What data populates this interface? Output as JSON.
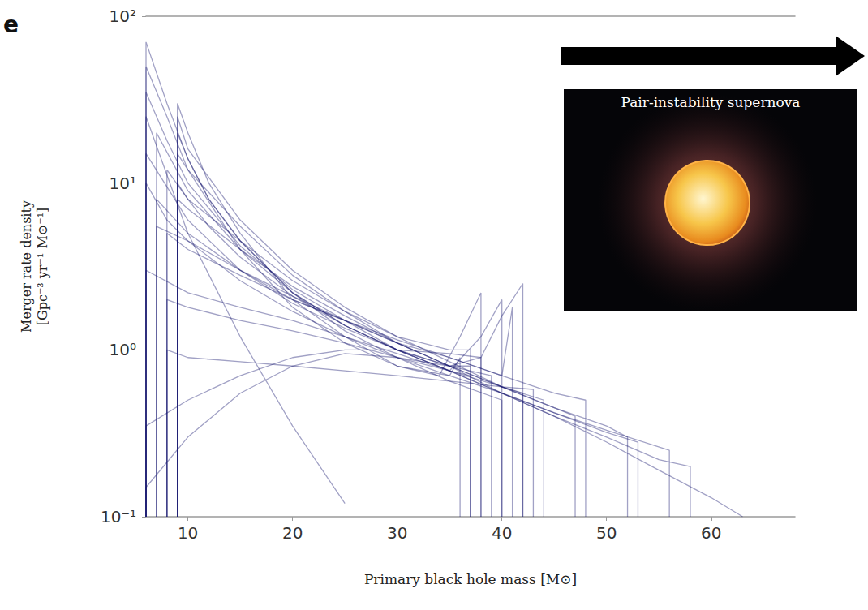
{
  "chart_data": {
    "type": "line",
    "panel_label": "e",
    "x_label": "Primary black hole mass [M⊙]",
    "y_label": "Merger rate density\n[Gpc⁻³ yr⁻¹ M⊙⁻¹]",
    "inset_title": "Pair-instability supernova",
    "log": "y",
    "grid": false,
    "color": "#14146e",
    "xlim": [
      6,
      68
    ],
    "xticks": [
      10,
      20,
      30,
      40,
      50,
      60
    ],
    "ylim": [
      0.1,
      100
    ],
    "yticks": [
      {
        "value": 0.1,
        "label": "10⁻¹"
      },
      {
        "value": 1,
        "label": "10⁰"
      },
      {
        "value": 10,
        "label": "10¹"
      },
      {
        "value": 100,
        "label": "10²"
      }
    ],
    "series": [
      {
        "x": [
          6,
          6,
          8,
          10,
          12,
          15,
          20,
          25,
          30,
          35,
          40,
          40
        ],
        "values": [
          0.1,
          70,
          30,
          14,
          8,
          4.5,
          2.2,
          1.3,
          0.9,
          0.65,
          0.5,
          0.1
        ]
      },
      {
        "x": [
          9,
          9,
          10,
          12,
          15,
          20,
          25,
          30,
          35,
          37,
          37
        ],
        "values": [
          0.1,
          20,
          14,
          8,
          4.5,
          2.2,
          1.4,
          1.0,
          0.75,
          0.7,
          0.1
        ]
      },
      {
        "x": [
          8,
          8,
          10,
          12,
          15,
          20,
          25,
          30,
          35,
          40,
          42,
          42
        ],
        "values": [
          0.1,
          12,
          8,
          5.5,
          3.6,
          2.1,
          1.4,
          1.0,
          0.8,
          0.6,
          0.55,
          0.1
        ]
      },
      {
        "x": [
          7,
          7,
          10,
          15,
          20,
          25,
          30,
          35,
          40,
          45,
          48,
          48
        ],
        "values": [
          0.1,
          8,
          5,
          3,
          2,
          1.5,
          1.1,
          0.9,
          0.7,
          0.55,
          0.5,
          0.1
        ]
      },
      {
        "x": [
          9,
          9,
          10,
          12,
          15,
          20,
          25,
          30,
          34,
          36,
          38,
          38
        ],
        "values": [
          0.1,
          30,
          20,
          10,
          5,
          2,
          1.2,
          0.8,
          0.7,
          1.2,
          2.2,
          0.1
        ]
      },
      {
        "x": [
          6,
          6,
          8,
          10,
          15,
          20,
          25,
          30,
          35,
          40,
          45,
          50,
          53,
          53
        ],
        "values": [
          0.1,
          10,
          6,
          4.5,
          2.6,
          1.7,
          1.2,
          0.9,
          0.7,
          0.55,
          0.42,
          0.32,
          0.28,
          0.1
        ]
      },
      {
        "x": [
          6,
          6,
          10,
          15,
          20,
          25,
          30,
          35,
          38,
          38
        ],
        "values": [
          0.1,
          0.35,
          0.5,
          0.7,
          0.9,
          1.0,
          1.0,
          0.95,
          0.9,
          0.1
        ]
      },
      {
        "x": [
          8,
          8,
          10,
          15,
          20,
          25,
          30,
          35,
          40,
          45,
          50,
          55,
          58,
          58
        ],
        "values": [
          0.1,
          5,
          4,
          2.8,
          2,
          1.5,
          1.1,
          0.8,
          0.55,
          0.4,
          0.3,
          0.22,
          0.2,
          0.1
        ]
      },
      {
        "x": [
          6,
          6,
          8,
          10,
          15,
          20,
          25,
          30,
          35,
          36,
          36
        ],
        "values": [
          0.1,
          50,
          25,
          12,
          4,
          1.8,
          1.1,
          0.8,
          0.7,
          0.9,
          0.1
        ]
      },
      {
        "x": [
          9,
          9,
          10,
          15,
          20,
          25,
          30,
          35,
          38,
          40,
          42,
          42
        ],
        "values": [
          0.1,
          15,
          12,
          5.5,
          2.8,
          1.7,
          1.1,
          0.8,
          0.9,
          1.6,
          2.5,
          0.1
        ]
      },
      {
        "x": [
          6,
          6,
          10,
          15,
          20,
          25,
          30,
          35,
          40,
          45,
          50,
          55,
          60,
          63
        ],
        "values": [
          0.1,
          3,
          2.2,
          1.8,
          1.5,
          1.2,
          0.95,
          0.75,
          0.55,
          0.4,
          0.28,
          0.19,
          0.13,
          0.1
        ]
      },
      {
        "x": [
          7,
          7,
          10,
          15,
          20,
          25,
          30,
          35,
          39,
          39
        ],
        "values": [
          0.1,
          20,
          9,
          4,
          2.2,
          1.4,
          1.0,
          0.8,
          0.7,
          0.1
        ]
      },
      {
        "x": [
          9,
          9,
          10,
          15,
          20,
          25,
          30,
          35,
          40,
          45,
          47,
          47
        ],
        "values": [
          0.1,
          25,
          16,
          6,
          3,
          1.8,
          1.2,
          0.85,
          0.6,
          0.45,
          0.4,
          0.1
        ]
      },
      {
        "x": [
          6,
          6,
          10,
          15,
          20,
          25,
          30,
          35,
          37,
          37
        ],
        "values": [
          0.1,
          0.15,
          0.3,
          0.55,
          0.8,
          0.95,
          0.9,
          0.8,
          0.8,
          0.1
        ]
      },
      {
        "x": [
          8,
          8,
          10,
          15,
          20,
          25,
          30,
          35,
          40,
          44,
          44
        ],
        "values": [
          0.1,
          2,
          1.8,
          1.5,
          1.3,
          1.1,
          0.9,
          0.75,
          0.6,
          0.5,
          0.1
        ]
      },
      {
        "x": [
          6,
          6,
          8,
          10,
          15,
          20,
          25,
          30,
          35,
          38,
          40,
          40
        ],
        "values": [
          0.1,
          35,
          18,
          10,
          4.2,
          2.3,
          1.5,
          1.0,
          0.75,
          1.2,
          2.0,
          0.1
        ]
      },
      {
        "x": [
          9,
          9,
          10,
          15,
          20,
          25,
          30,
          35,
          40,
          45,
          50,
          52,
          52
        ],
        "values": [
          0.1,
          8,
          7,
          4,
          2.4,
          1.6,
          1.1,
          0.8,
          0.6,
          0.45,
          0.35,
          0.3,
          0.1
        ]
      },
      {
        "x": [
          6,
          6,
          10,
          15,
          20,
          25
        ],
        "values": [
          0.1,
          25,
          5,
          1.2,
          0.35,
          0.12
        ]
      },
      {
        "x": [
          7,
          7,
          10,
          15,
          20,
          25,
          30,
          35,
          40,
          41,
          41
        ],
        "values": [
          0.1,
          5.5,
          4.5,
          3,
          2.1,
          1.5,
          1.15,
          0.9,
          0.7,
          1.8,
          0.1
        ]
      },
      {
        "x": [
          9,
          9,
          10,
          15,
          20,
          25,
          30,
          35,
          37,
          37
        ],
        "values": [
          0.1,
          10,
          8,
          4.5,
          2.6,
          1.7,
          1.2,
          1.0,
          1.0,
          0.1
        ]
      },
      {
        "x": [
          6,
          6,
          10,
          15,
          20,
          25,
          30,
          35,
          40,
          45,
          50,
          56,
          56
        ],
        "values": [
          0.1,
          15,
          6,
          3,
          1.9,
          1.35,
          1.0,
          0.75,
          0.55,
          0.42,
          0.33,
          0.25,
          0.1
        ]
      },
      {
        "x": [
          8,
          8,
          10,
          15,
          20,
          25,
          30,
          35,
          40,
          43,
          43
        ],
        "values": [
          0.1,
          1.0,
          0.9,
          0.85,
          0.8,
          0.75,
          0.7,
          0.65,
          0.6,
          0.58,
          0.1
        ]
      }
    ]
  }
}
